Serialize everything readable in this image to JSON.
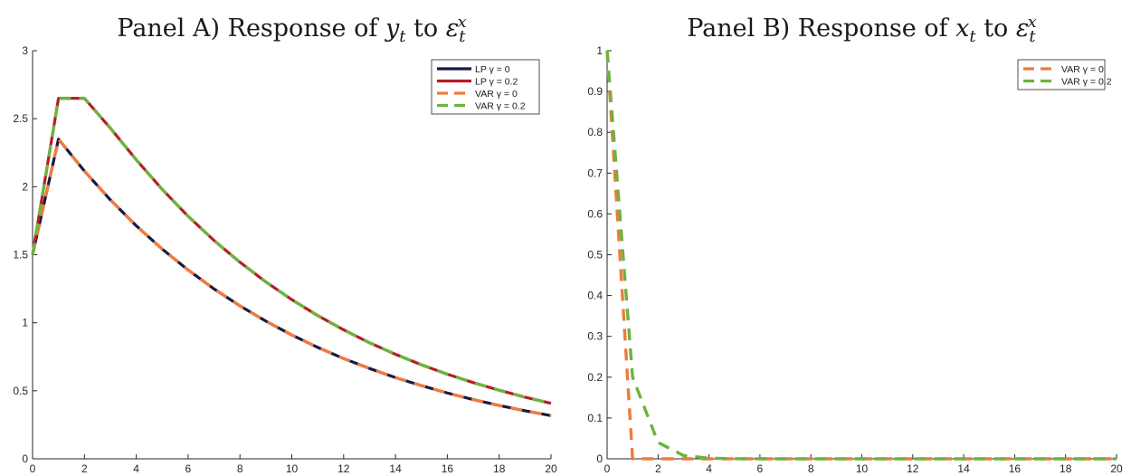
{
  "chart_data": [
    {
      "type": "line",
      "title": "Panel A) Response of y_t to ε_t^x",
      "title_parts": {
        "prefix": "Panel A) Response of ",
        "var": "y",
        "var_sub": "t",
        "to": " to ",
        "shock": "ε",
        "shock_sub": "t",
        "shock_sup": "x"
      },
      "xlim": [
        0,
        20
      ],
      "ylim": [
        0,
        3
      ],
      "xticks": [
        "0",
        "2",
        "4",
        "6",
        "8",
        "10",
        "12",
        "14",
        "16",
        "18",
        "20"
      ],
      "yticks": [
        "0",
        "0.5",
        "1",
        "1.5",
        "2",
        "2.5",
        "3"
      ],
      "legend_position": "top-right",
      "x": [
        0,
        1,
        2,
        3,
        4,
        5,
        6,
        7,
        8,
        9,
        10,
        11,
        12,
        13,
        14,
        15,
        16,
        17,
        18,
        19,
        20
      ],
      "series": [
        {
          "name": "LP γ = 0",
          "style": "solid",
          "color": "#151a45",
          "values": [
            1.5,
            2.35,
            2.115,
            1.904,
            1.713,
            1.542,
            1.388,
            1.249,
            1.124,
            1.012,
            0.91,
            0.819,
            0.737,
            0.664,
            0.597,
            0.538,
            0.484,
            0.435,
            0.392,
            0.353,
            0.317
          ]
        },
        {
          "name": "LP γ = 0.2",
          "style": "solid",
          "color": "#b81d24",
          "values": [
            1.5,
            2.65,
            2.65,
            2.431,
            2.198,
            1.981,
            1.783,
            1.605,
            1.445,
            1.3,
            1.17,
            1.053,
            0.948,
            0.853,
            0.768,
            0.691,
            0.622,
            0.56,
            0.504,
            0.453,
            0.408
          ]
        },
        {
          "name": "VAR γ = 0",
          "style": "dashed",
          "color": "#f07a3e",
          "values": [
            1.5,
            2.35,
            2.115,
            1.904,
            1.713,
            1.542,
            1.388,
            1.249,
            1.124,
            1.012,
            0.91,
            0.819,
            0.737,
            0.664,
            0.597,
            0.538,
            0.484,
            0.435,
            0.392,
            0.353,
            0.317
          ]
        },
        {
          "name": "VAR γ = 0.2",
          "style": "dashed",
          "color": "#6db33f",
          "values": [
            1.5,
            2.65,
            2.65,
            2.431,
            2.198,
            1.981,
            1.783,
            1.605,
            1.445,
            1.3,
            1.17,
            1.053,
            0.948,
            0.853,
            0.768,
            0.691,
            0.622,
            0.56,
            0.504,
            0.453,
            0.408
          ]
        }
      ]
    },
    {
      "type": "line",
      "title": "Panel B) Response of x_t to ε_t^x",
      "title_parts": {
        "prefix": "Panel B) Response of ",
        "var": "x",
        "var_sub": "t",
        "to": " to ",
        "shock": "ε",
        "shock_sub": "t",
        "shock_sup": "x"
      },
      "xlim": [
        0,
        20
      ],
      "ylim": [
        0,
        1
      ],
      "xticks": [
        "0",
        "2",
        "4",
        "6",
        "8",
        "10",
        "12",
        "14",
        "16",
        "18",
        "20"
      ],
      "yticks": [
        "0",
        "0.1",
        "0.2",
        "0.3",
        "0.4",
        "0.5",
        "0.6",
        "0.7",
        "0.8",
        "0.9",
        "1"
      ],
      "legend_position": "top-right",
      "x": [
        0,
        1,
        2,
        3,
        4,
        5,
        6,
        7,
        8,
        9,
        10,
        11,
        12,
        13,
        14,
        15,
        16,
        17,
        18,
        19,
        20
      ],
      "series": [
        {
          "name": "VAR γ = 0",
          "style": "dashed",
          "color": "#f07a3e",
          "values": [
            1,
            0,
            0,
            0,
            0,
            0,
            0,
            0,
            0,
            0,
            0,
            0,
            0,
            0,
            0,
            0,
            0,
            0,
            0,
            0,
            0
          ]
        },
        {
          "name": "VAR γ = 0.2",
          "style": "dashed",
          "color": "#6db33f",
          "values": [
            1,
            0.2,
            0.04,
            0.008,
            0.0016,
            0.0003,
            0,
            0,
            0,
            0,
            0,
            0,
            0,
            0,
            0,
            0,
            0,
            0,
            0,
            0,
            0
          ]
        }
      ]
    }
  ]
}
